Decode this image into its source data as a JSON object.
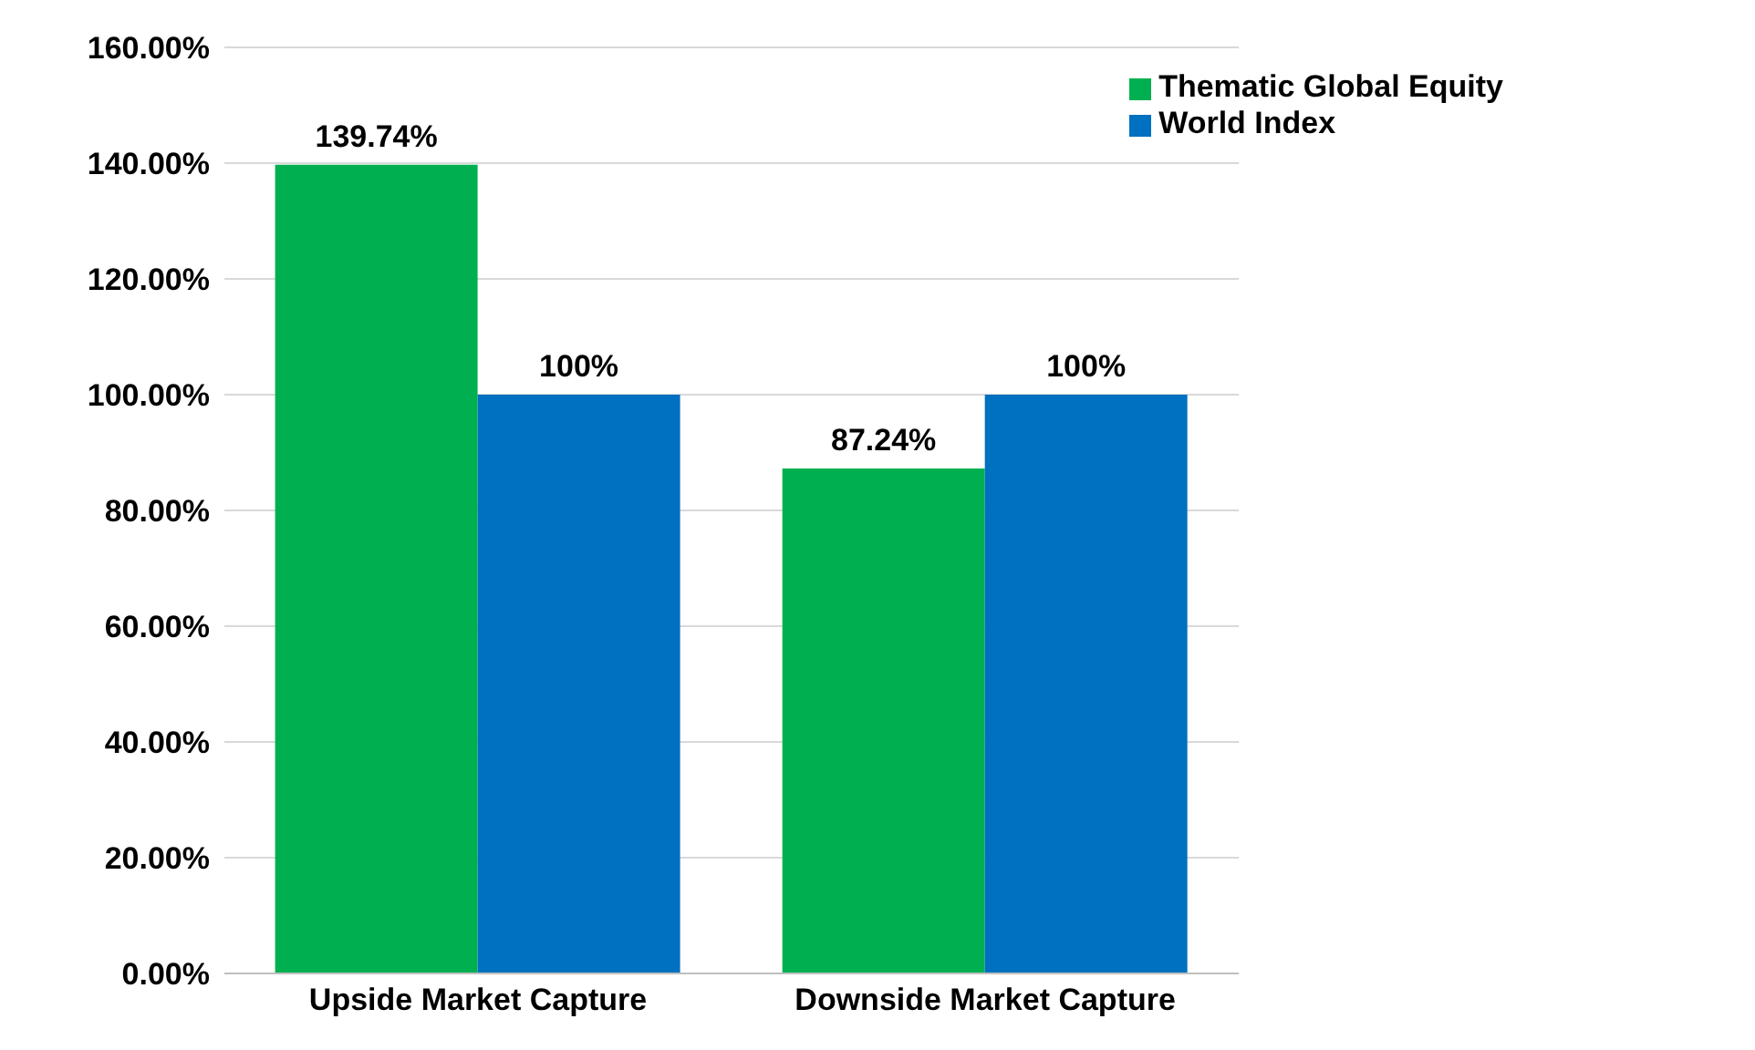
{
  "chart_data": {
    "type": "bar",
    "categories": [
      "Upside Market Capture",
      "Downside Market Capture"
    ],
    "series": [
      {
        "name": "Thematic Global Equity",
        "color": "#00b050",
        "values": [
          139.74,
          87.24
        ],
        "value_labels": [
          "139.74%",
          "87.24%"
        ]
      },
      {
        "name": "World Index",
        "color": "#0070c0",
        "values": [
          100,
          100
        ],
        "value_labels": [
          "100%",
          "100%"
        ]
      }
    ],
    "ylim": [
      0,
      160
    ],
    "yticks": [
      {
        "value": 0,
        "label": "0.00%"
      },
      {
        "value": 20,
        "label": "20.00%"
      },
      {
        "value": 40,
        "label": "40.00%"
      },
      {
        "value": 60,
        "label": "60.00%"
      },
      {
        "value": 80,
        "label": "80.00%"
      },
      {
        "value": 100,
        "label": "100.00%"
      },
      {
        "value": 120,
        "label": "120.00%"
      },
      {
        "value": 140,
        "label": "140.00%"
      },
      {
        "value": 160,
        "label": "160.00%"
      }
    ],
    "grid": "y",
    "legend": "top right"
  }
}
